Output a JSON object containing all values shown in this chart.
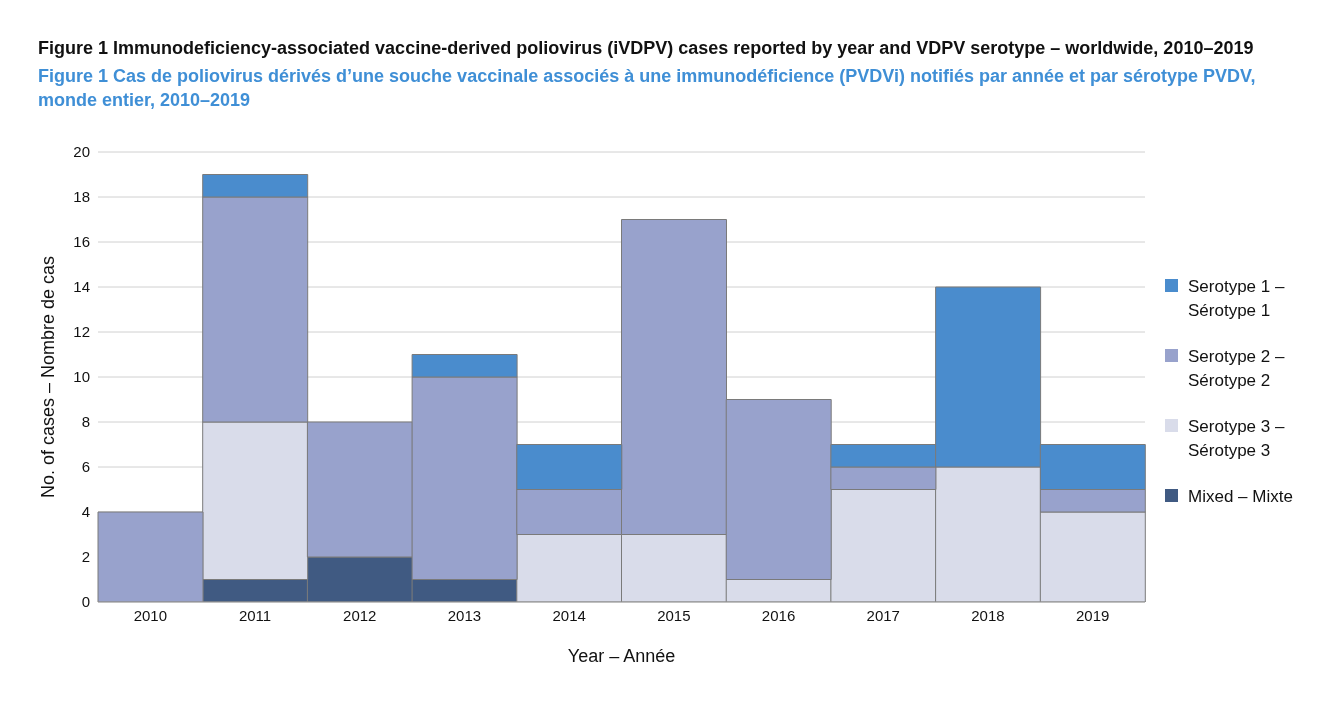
{
  "chart_data": {
    "type": "bar",
    "title": "Figure 1  Immunodeficiency-associated vaccine-derived poliovirus (iVDPV) cases reported by year and VDPV serotype – worldwide, 2010–2019",
    "subtitle": "Figure 1  Cas de poliovirus dérivés d’une souche vaccinale associés à une immunodéficience (PVDVi) notifiés par année et par sérotype PVDV, monde entier, 2010–2019",
    "xlabel": "Year – Année",
    "ylabel": "No. of cases – Nombre de cas",
    "categories": [
      "2010",
      "2011",
      "2012",
      "2013",
      "2014",
      "2015",
      "2016",
      "2017",
      "2018",
      "2019"
    ],
    "stacked": true,
    "series": [
      {
        "name": "Mixed – Mixte",
        "color": "#405a82",
        "values": [
          0,
          1,
          2,
          1,
          0,
          0,
          0,
          0,
          0,
          0
        ]
      },
      {
        "name": "Serotype 3 – Sérotype 3",
        "color": "#d9dcea",
        "values": [
          0,
          7,
          0,
          0,
          3,
          3,
          1,
          5,
          6,
          4
        ]
      },
      {
        "name": "Serotype 2 – Sérotype 2",
        "color": "#98a2cc",
        "values": [
          4,
          10,
          6,
          9,
          2,
          14,
          8,
          1,
          0,
          1
        ]
      },
      {
        "name": "Serotype 1 – Sérotype 1",
        "color": "#4a8ccd",
        "values": [
          0,
          1,
          0,
          1,
          2,
          0,
          0,
          1,
          8,
          2
        ]
      }
    ],
    "ylim": [
      0,
      20
    ],
    "yticks": [
      0,
      2,
      4,
      6,
      8,
      10,
      12,
      14,
      16,
      18,
      20
    ],
    "grid": "y",
    "legend": "right"
  }
}
